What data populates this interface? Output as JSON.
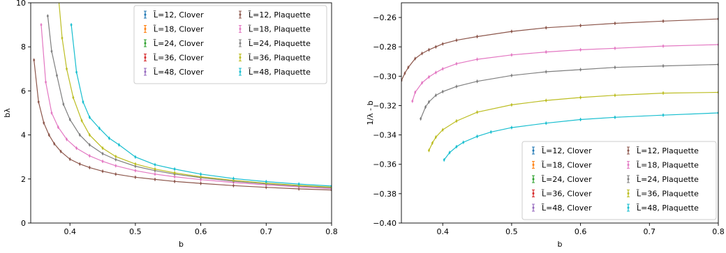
{
  "series_colors": {
    "clover": [
      "#1f77b4",
      "#ff7f0e",
      "#2ca02c",
      "#d62728",
      "#9467bd"
    ],
    "plaquette": [
      "#8c564b",
      "#e377c2",
      "#7f7f7f",
      "#bcbd22",
      "#17becf"
    ]
  },
  "chart_data": [
    {
      "type": "line",
      "xlabel": "b",
      "ylabel": "bλ",
      "xlim": [
        0.34,
        0.8
      ],
      "ylim": [
        0,
        10
      ],
      "xticks": [
        0.4,
        0.5,
        0.6,
        0.7,
        0.8
      ],
      "yticks": [
        0,
        2,
        4,
        6,
        8,
        10
      ],
      "grid": false,
      "legend_position": "top-right",
      "legend_columns": 2,
      "legend": [
        "L̃=12, Clover",
        "L̃=18, Clover",
        "L̃=24, Clover",
        "L̃=36, Clover",
        "L̃=48, Clover",
        "L̃=12, Plaquette",
        "L̃=18, Plaquette",
        "L̃=24, Plaquette",
        "L̃=36, Plaquette",
        "L̃=48, Plaquette"
      ],
      "series": [
        {
          "name": "L̃=12, Plaquette",
          "x": [
            0.345,
            0.352,
            0.36,
            0.368,
            0.376,
            0.386,
            0.4,
            0.415,
            0.43,
            0.45,
            0.47,
            0.5,
            0.53,
            0.56,
            0.6,
            0.65,
            0.7,
            0.75,
            0.8
          ],
          "y": [
            7.4,
            5.5,
            4.55,
            4.0,
            3.6,
            3.25,
            2.9,
            2.68,
            2.52,
            2.35,
            2.22,
            2.08,
            1.98,
            1.89,
            1.8,
            1.7,
            1.62,
            1.55,
            1.5
          ]
        },
        {
          "name": "L̃=18, Plaquette",
          "x": [
            0.356,
            0.363,
            0.372,
            0.382,
            0.395,
            0.41,
            0.43,
            0.45,
            0.47,
            0.5,
            0.53,
            0.56,
            0.6,
            0.65,
            0.7,
            0.75,
            0.8
          ],
          "y": [
            9.0,
            6.4,
            5.0,
            4.35,
            3.8,
            3.4,
            3.05,
            2.8,
            2.6,
            2.38,
            2.22,
            2.1,
            1.97,
            1.84,
            1.73,
            1.64,
            1.56
          ]
        },
        {
          "name": "L̃=24, Plaquette",
          "x": [
            0.366,
            0.372,
            0.38,
            0.39,
            0.4,
            0.415,
            0.43,
            0.45,
            0.47,
            0.5,
            0.53,
            0.56,
            0.6,
            0.65,
            0.7,
            0.75,
            0.8
          ],
          "y": [
            9.4,
            7.8,
            6.7,
            5.4,
            4.7,
            4.0,
            3.55,
            3.15,
            2.88,
            2.58,
            2.38,
            2.22,
            2.06,
            1.9,
            1.78,
            1.68,
            1.6
          ]
        },
        {
          "name": "L̃=36, Plaquette",
          "x": [
            0.382,
            0.388,
            0.395,
            0.405,
            0.418,
            0.43,
            0.45,
            0.47,
            0.5,
            0.53,
            0.56,
            0.6,
            0.65,
            0.7,
            0.75,
            0.8
          ],
          "y": [
            10.4,
            8.4,
            7.0,
            5.7,
            4.65,
            4.0,
            3.4,
            3.02,
            2.68,
            2.45,
            2.28,
            2.1,
            1.94,
            1.81,
            1.71,
            1.63
          ]
        },
        {
          "name": "L̃=48, Plaquette",
          "x": [
            0.402,
            0.41,
            0.42,
            0.43,
            0.445,
            0.46,
            0.475,
            0.5,
            0.53,
            0.56,
            0.6,
            0.65,
            0.7,
            0.75,
            0.8
          ],
          "y": [
            9.0,
            6.85,
            5.5,
            4.8,
            4.3,
            3.85,
            3.55,
            3.0,
            2.65,
            2.45,
            2.22,
            2.02,
            1.88,
            1.77,
            1.68
          ]
        }
      ]
    },
    {
      "type": "line",
      "xlabel": "b",
      "ylabel": "1/λ - b",
      "xlim": [
        0.34,
        0.8
      ],
      "ylim": [
        -0.4,
        -0.25
      ],
      "xticks": [
        0.4,
        0.5,
        0.6,
        0.7,
        0.8
      ],
      "yticks": [
        -0.4,
        -0.38,
        -0.36,
        -0.34,
        -0.32,
        -0.3,
        -0.28,
        -0.26
      ],
      "grid": false,
      "legend_position": "bottom-right",
      "legend_columns": 2,
      "legend": [
        "L̃=12, Clover",
        "L̃=18, Clover",
        "L̃=24, Clover",
        "L̃=36, Clover",
        "L̃=48, Clover",
        "L̃=12, Plaquette",
        "L̃=18, Plaquette",
        "L̃=24, Plaquette",
        "L̃=36, Plaquette",
        "L̃=48, Plaquette"
      ],
      "series": [
        {
          "name": "L̃=12, Plaquette",
          "x": [
            0.34,
            0.345,
            0.35,
            0.36,
            0.37,
            0.38,
            0.39,
            0.4,
            0.42,
            0.45,
            0.5,
            0.55,
            0.6,
            0.65,
            0.72,
            0.8
          ],
          "y": [
            -0.303,
            -0.298,
            -0.294,
            -0.288,
            -0.2845,
            -0.282,
            -0.28,
            -0.278,
            -0.2755,
            -0.273,
            -0.2695,
            -0.267,
            -0.2655,
            -0.264,
            -0.2625,
            -0.261
          ]
        },
        {
          "name": "L̃=18, Plaquette",
          "x": [
            0.356,
            0.36,
            0.37,
            0.38,
            0.39,
            0.4,
            0.42,
            0.45,
            0.5,
            0.55,
            0.6,
            0.65,
            0.72,
            0.8
          ],
          "y": [
            -0.317,
            -0.311,
            -0.3045,
            -0.3005,
            -0.2975,
            -0.295,
            -0.2915,
            -0.2885,
            -0.2855,
            -0.2835,
            -0.282,
            -0.281,
            -0.2795,
            -0.2785
          ]
        },
        {
          "name": "L̃=24, Plaquette",
          "x": [
            0.368,
            0.375,
            0.38,
            0.39,
            0.4,
            0.42,
            0.45,
            0.5,
            0.55,
            0.6,
            0.65,
            0.72,
            0.8
          ],
          "y": [
            -0.329,
            -0.321,
            -0.3175,
            -0.313,
            -0.3105,
            -0.307,
            -0.3035,
            -0.2995,
            -0.297,
            -0.2955,
            -0.294,
            -0.293,
            -0.292
          ]
        },
        {
          "name": "L̃=36, Plaquette",
          "x": [
            0.38,
            0.385,
            0.39,
            0.4,
            0.42,
            0.45,
            0.5,
            0.55,
            0.6,
            0.65,
            0.72,
            0.8
          ],
          "y": [
            -0.3505,
            -0.3455,
            -0.3415,
            -0.3365,
            -0.3305,
            -0.3245,
            -0.3195,
            -0.3165,
            -0.3145,
            -0.313,
            -0.3115,
            -0.311
          ]
        },
        {
          "name": "L̃=48, Plaquette",
          "x": [
            0.402,
            0.41,
            0.42,
            0.43,
            0.45,
            0.47,
            0.5,
            0.55,
            0.6,
            0.65,
            0.72,
            0.8
          ],
          "y": [
            -0.357,
            -0.352,
            -0.348,
            -0.345,
            -0.341,
            -0.338,
            -0.335,
            -0.332,
            -0.3295,
            -0.328,
            -0.3265,
            -0.325
          ]
        }
      ]
    }
  ]
}
